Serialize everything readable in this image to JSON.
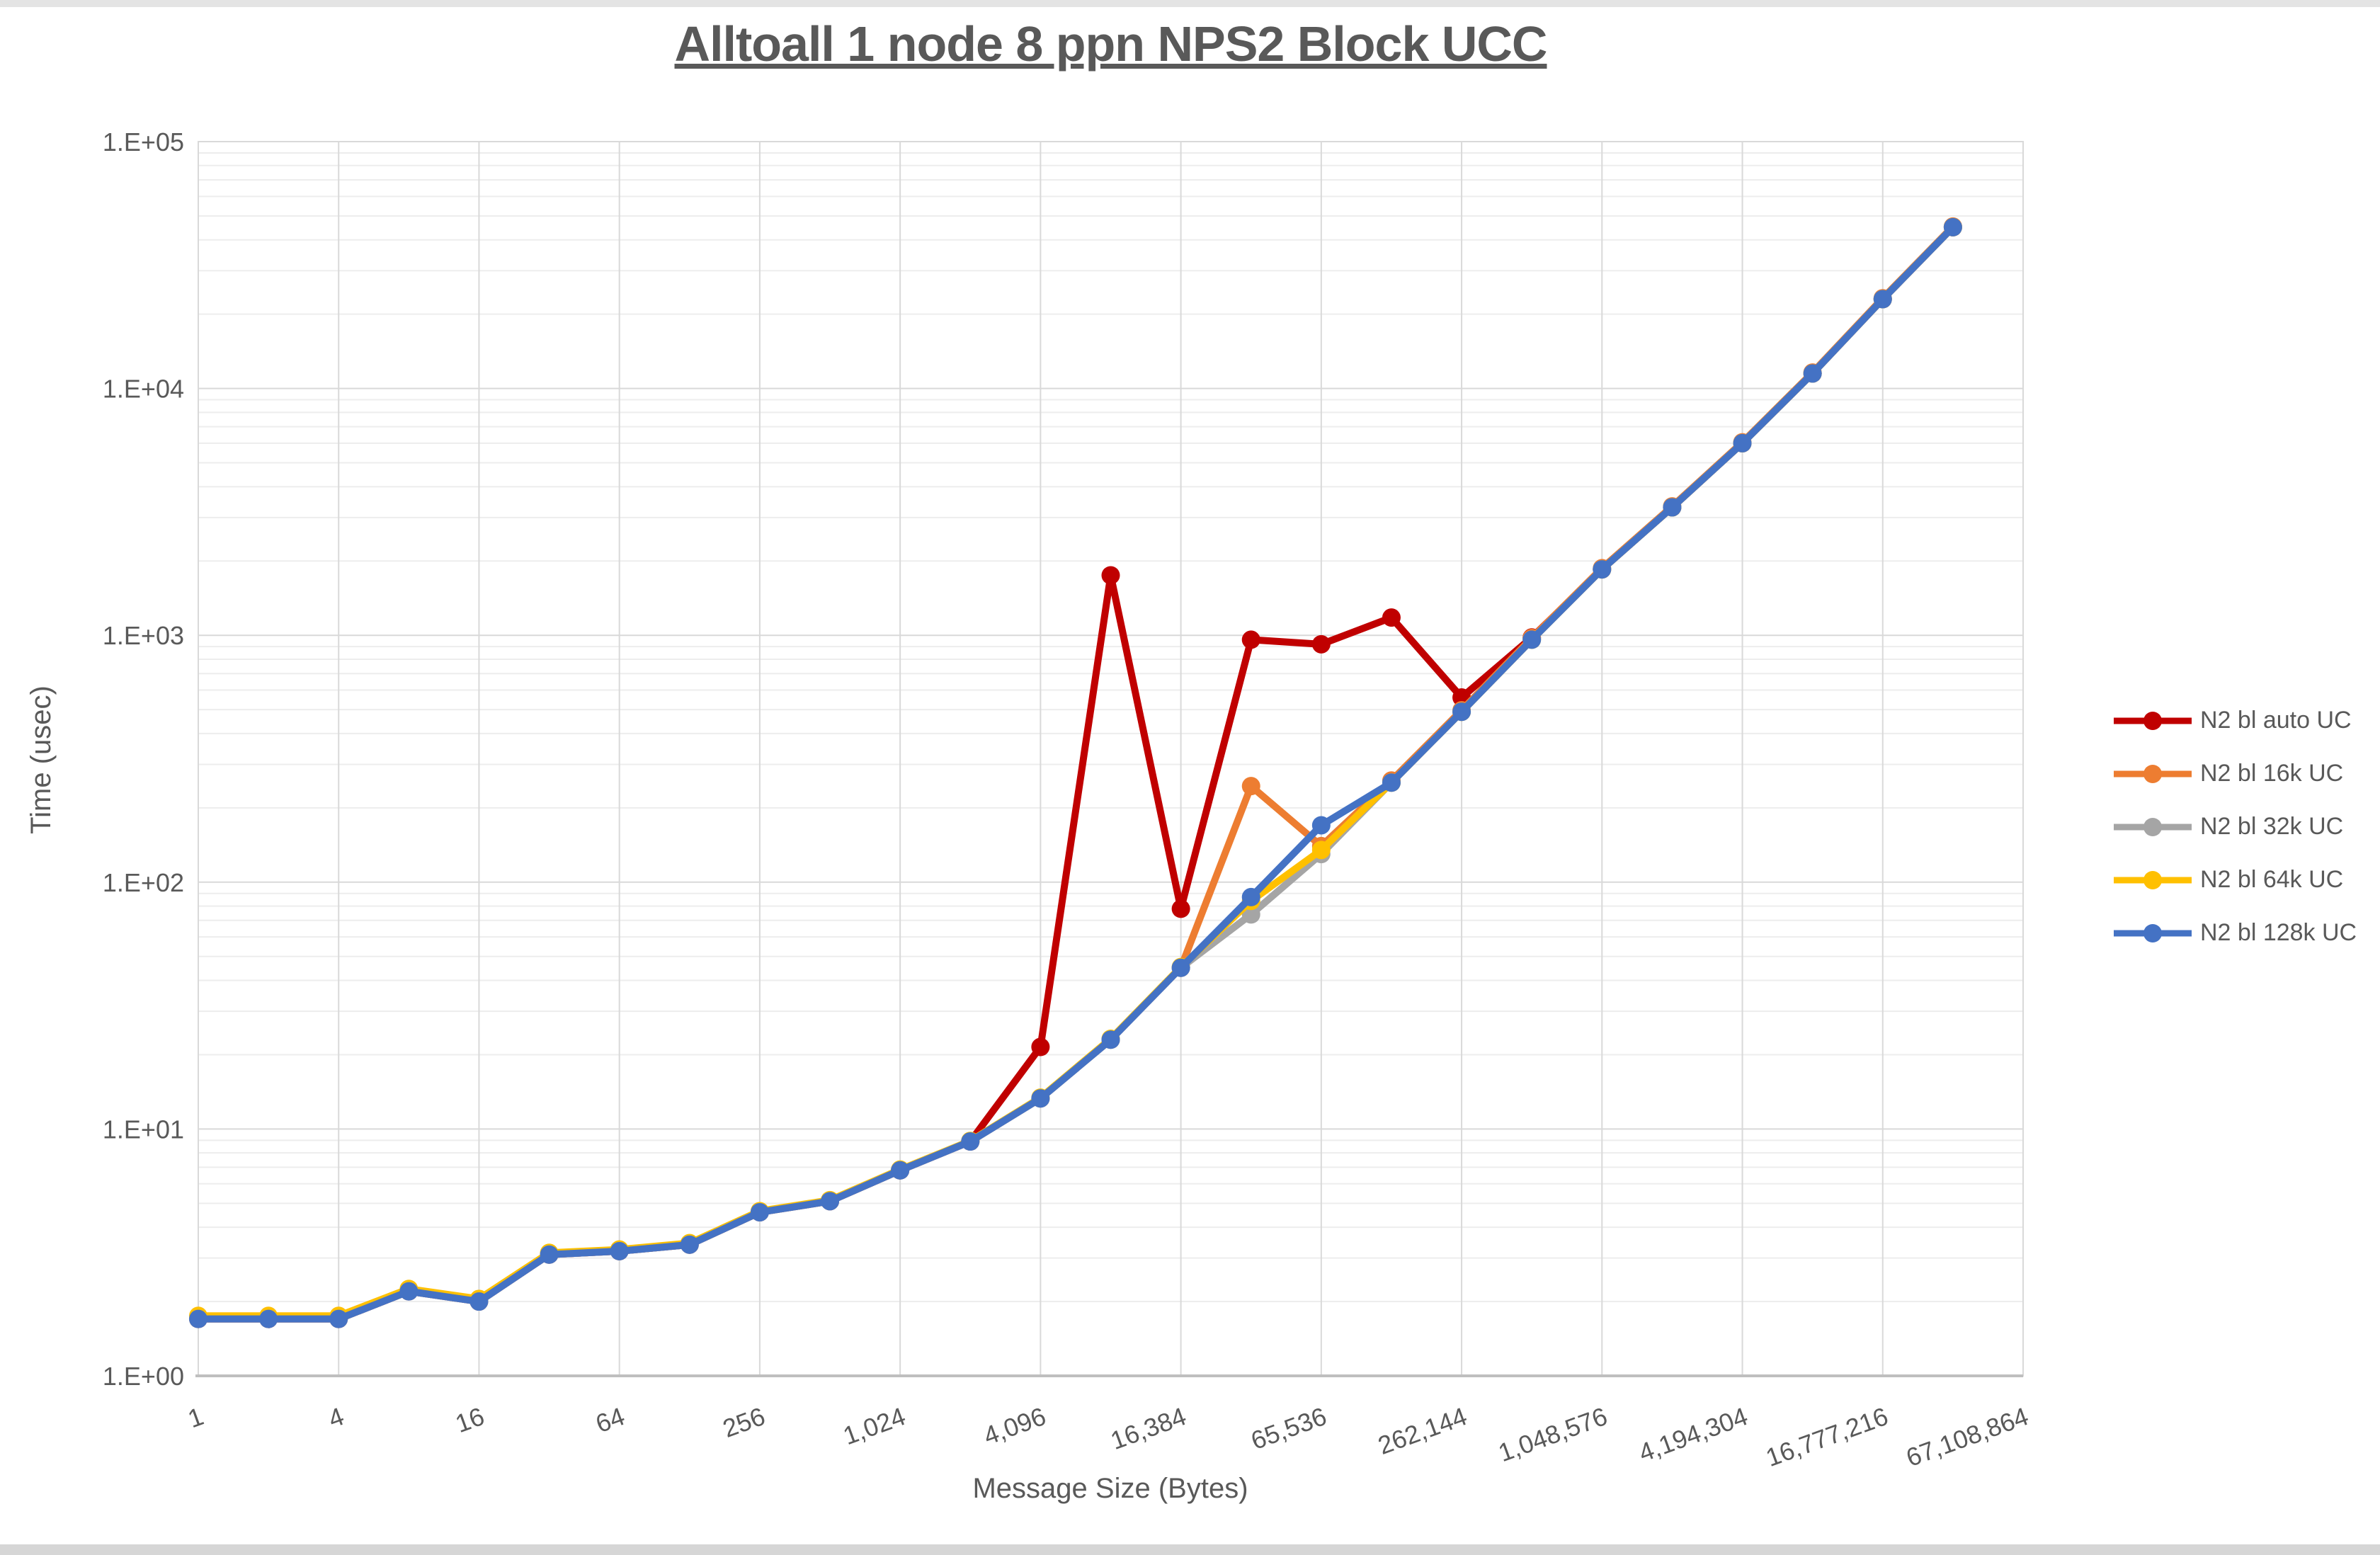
{
  "chart_data": {
    "type": "line",
    "title": "Alltoall 1 node 8 ppn NPS2 Block UCC",
    "xlabel": "Message Size (Bytes)",
    "ylabel": "Time (usec)",
    "x_scale": "log2-categories",
    "y_scale": "log10",
    "ylim": [
      1,
      100000
    ],
    "y_tick_labels": [
      "1.E+00",
      "1.E+01",
      "1.E+02",
      "1.E+03",
      "1.E+04",
      "1.E+05"
    ],
    "x_tick_labels": [
      "1",
      "4",
      "16",
      "64",
      "256",
      "1,024",
      "4,096",
      "16,384",
      "65,536",
      "262,144",
      "1,048,576",
      "4,194,304",
      "16,777,216",
      "67,108,864"
    ],
    "grid": "major-and-minor-horizontal, major-vertical",
    "legend_position": "right",
    "categories": [
      1,
      2,
      4,
      8,
      16,
      32,
      64,
      128,
      256,
      512,
      1024,
      2048,
      4096,
      8192,
      16384,
      32768,
      65536,
      131072,
      262144,
      524288,
      1048576,
      2097152,
      4194304,
      8388608,
      16777216,
      33554432
    ],
    "series": [
      {
        "name": "N2 bl auto UC",
        "color": "#C00000",
        "values": [
          1.7,
          1.7,
          1.7,
          2.2,
          2.0,
          3.1,
          3.2,
          3.4,
          4.6,
          5.1,
          6.8,
          8.9,
          21.5,
          1750,
          78,
          960,
          920,
          1180,
          560,
          980,
          1850,
          3300,
          6000,
          11500,
          23000,
          45000
        ]
      },
      {
        "name": "N2 bl 16k UC",
        "color": "#ED7D31",
        "values": [
          1.7,
          1.7,
          1.7,
          2.2,
          2.0,
          3.1,
          3.2,
          3.4,
          4.6,
          5.1,
          6.8,
          8.9,
          13.3,
          23,
          45,
          245,
          140,
          258,
          497,
          975,
          1870,
          3330,
          6050,
          11600,
          23200,
          45300
        ]
      },
      {
        "name": "N2 bl 32k UC",
        "color": "#A5A5A5",
        "values": [
          1.7,
          1.7,
          1.7,
          2.2,
          2.0,
          3.1,
          3.2,
          3.4,
          4.6,
          5.1,
          6.8,
          8.9,
          13.3,
          23,
          45,
          74,
          130,
          253,
          490,
          960,
          1850,
          3300,
          6000,
          11500,
          23000,
          45000
        ]
      },
      {
        "name": "N2 bl 64k UC",
        "color": "#FFC000",
        "values": [
          1.75,
          1.75,
          1.75,
          2.25,
          2.05,
          3.15,
          3.25,
          3.45,
          4.65,
          5.15,
          6.85,
          8.95,
          13.4,
          23.2,
          45.3,
          84,
          135,
          253,
          490,
          960,
          1850,
          3300,
          6000,
          11500,
          23000,
          45000
        ]
      },
      {
        "name": "N2 bl 128k UC",
        "color": "#4472C4",
        "values": [
          1.7,
          1.7,
          1.7,
          2.2,
          2.0,
          3.1,
          3.2,
          3.4,
          4.6,
          5.1,
          6.8,
          8.9,
          13.3,
          23,
          45,
          87,
          170,
          253,
          490,
          960,
          1850,
          3300,
          6000,
          11500,
          23000,
          45000
        ]
      }
    ],
    "styles": {
      "text_color": "#595959",
      "major_grid_color": "#D9D9D9",
      "minor_grid_color": "#EDEDED",
      "axis_line_color": "#BFBFBF",
      "background": "#FFFFFF"
    }
  }
}
